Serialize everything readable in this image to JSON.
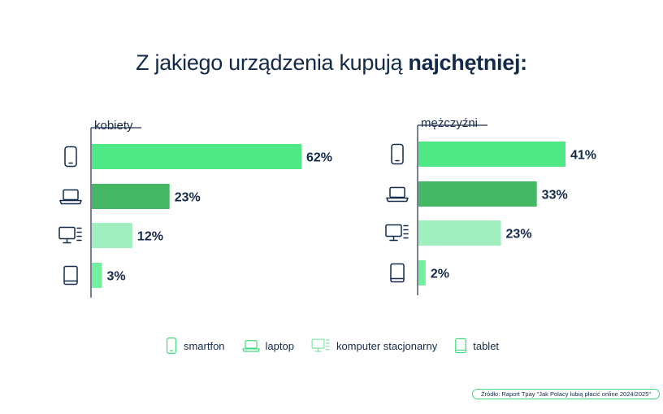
{
  "title": {
    "regular": "Z jakiego urządzenia kupują ",
    "bold": "najchętniej",
    "suffix": ":"
  },
  "colors": {
    "smartfon": "#4ee885",
    "laptop": "#44b865",
    "komputer_stacjonarny": "#a0efbe",
    "tablet": "#72ef9f",
    "text": "#142a4a",
    "axis": "#1d2f4f"
  },
  "icons": {
    "smartfon": "smartphone-icon",
    "laptop": "laptop-icon",
    "komputer_stacjonarny": "desktop-computer-icon",
    "tablet": "tablet-icon"
  },
  "legend": {
    "items": [
      {
        "key": "smartfon",
        "label": "smartfon"
      },
      {
        "key": "laptop",
        "label": "laptop"
      },
      {
        "key": "komputer_stacjonarny",
        "label": "komputer stacjonarny"
      },
      {
        "key": "tablet",
        "label": "tablet"
      }
    ]
  },
  "source": "Źródło: Raport Tpay \"Jak Polacy lubią płacić online 2024/2025\"",
  "chart_data": [
    {
      "type": "bar",
      "orientation": "horizontal",
      "title": "kobiety",
      "categories": [
        "smartfon",
        "laptop",
        "komputer stacjonarny",
        "tablet"
      ],
      "values": [
        62,
        23,
        12,
        3
      ],
      "value_labels": [
        "62%",
        "23%",
        "12%",
        "3%"
      ],
      "unit": "%",
      "xlim": [
        0,
        62
      ],
      "grid": false
    },
    {
      "type": "bar",
      "orientation": "horizontal",
      "title": "mężczyźni",
      "categories": [
        "smartfon",
        "laptop",
        "komputer stacjonarny",
        "tablet"
      ],
      "values": [
        41,
        33,
        23,
        2
      ],
      "value_labels": [
        "41%",
        "33%",
        "23%",
        "2%"
      ],
      "unit": "%",
      "xlim": [
        0,
        41
      ],
      "grid": false
    }
  ]
}
